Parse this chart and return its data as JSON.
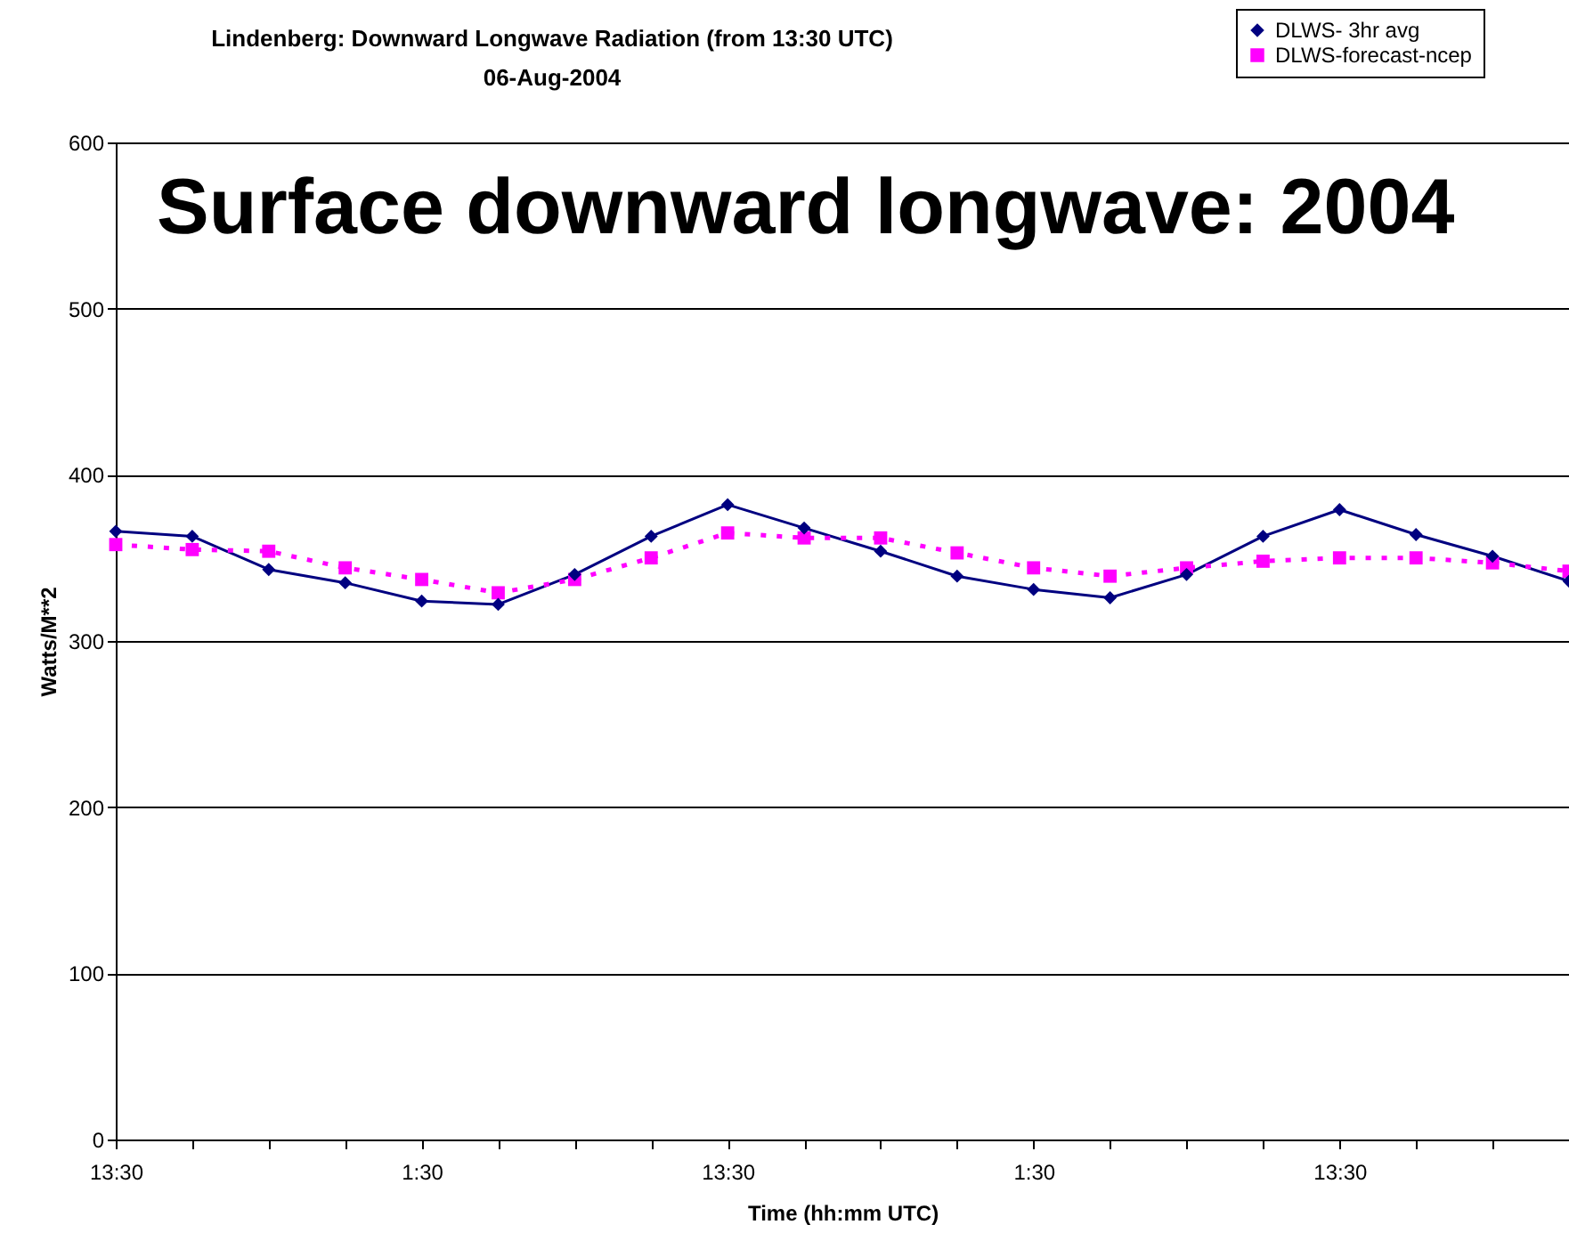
{
  "chart_data": {
    "type": "line",
    "title": "Lindenberg: Downward Longwave Radiation (from 13:30 UTC)",
    "subtitle": "06-Aug-2004",
    "xlabel": "Time (hh:mm UTC)",
    "ylabel": "Watts/M**2",
    "annotations": [
      "Surface downward longwave: 2004"
    ],
    "categories": [
      "13:30",
      null,
      null,
      null,
      "1:30",
      null,
      null,
      null,
      "13:30",
      null,
      null,
      null,
      "1:30",
      null,
      null,
      null,
      "13:30",
      null,
      null,
      null
    ],
    "series": [
      {
        "name": "DLWS- 3hr avg",
        "color": "#000080",
        "marker": "diamond",
        "line_style": "solid",
        "values": [
          366,
          363,
          343,
          335,
          324,
          322,
          340,
          363,
          382,
          368,
          354,
          339,
          331,
          326,
          340,
          363,
          379,
          364,
          351,
          336
        ]
      },
      {
        "name": "DLWS-forecast-ncep",
        "color": "#ff00ff",
        "marker": "square",
        "line_style": "dotted",
        "values": [
          358,
          355,
          354,
          344,
          337,
          329,
          337,
          350,
          365,
          362,
          362,
          353,
          344,
          339,
          344,
          348,
          350,
          350,
          347,
          342
        ]
      }
    ],
    "ylim": [
      0,
      600
    ],
    "yticks": [
      0,
      100,
      200,
      300,
      400,
      500,
      600
    ],
    "grid": "y",
    "legend": "top right"
  }
}
